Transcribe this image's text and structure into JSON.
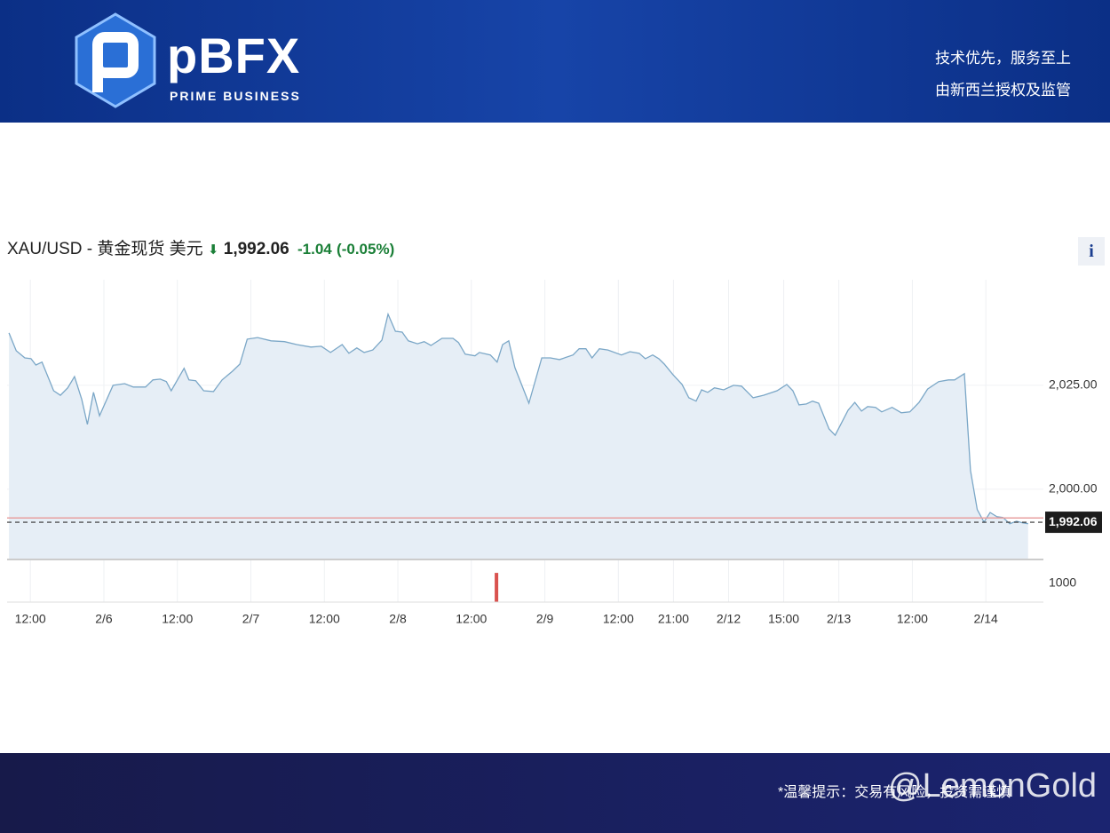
{
  "header": {
    "brand": "pBFX",
    "brand_sub": "PRIME BUSINESS",
    "tagline_1": "技术优先，服务至上",
    "tagline_2": "由新西兰授权及监管"
  },
  "info_button": "i",
  "footer": {
    "note": "*温馨提示：交易有风险，投资需谨慎",
    "watermark": "@LemonGold"
  },
  "chart_data": [
    {
      "type": "line",
      "title": "XAU/USD - 黄金现货 美元",
      "price": "1,992.06",
      "change": "-1.04",
      "change_pct": "(-0.05%)",
      "color": "#7ba7c7",
      "fill": "#e6eef6",
      "x": [
        -3.5,
        -2.3,
        -0.9,
        0.1,
        0.9,
        1.9,
        3.8,
        4.9,
        6.1,
        7.2,
        8.4,
        9.3,
        10.3,
        11.3,
        13.5,
        15.4,
        16.8,
        18.8,
        20.0,
        21.2,
        22.2,
        23.0,
        25.1,
        25.9,
        27.0,
        28.3,
        29.9,
        31.3,
        33.0,
        34.2,
        35.4,
        37.1,
        39.3,
        41.5,
        43.5,
        45.8,
        47.5,
        49.0,
        50.9,
        52.0,
        53.3,
        54.5,
        55.9,
        57.4,
        58.4,
        59.6,
        60.7,
        61.7,
        63.2,
        64.3,
        65.4,
        67.2,
        69.0,
        69.9,
        71.0,
        72.6,
        73.3,
        75.1,
        76.2,
        77.1,
        78.1,
        79.1,
        81.4,
        83.5,
        84.9,
        86.4,
        88.6,
        89.6,
        90.7,
        91.7,
        92.9,
        94.3,
        96.5,
        97.9,
        99.4,
        100.4,
        101.6,
        102.6,
        103.5,
        104.9,
        106.4,
        107.5,
        108.7,
        109.6,
        110.6,
        111.7,
        113.2,
        114.8,
        116.1,
        118.0,
        119.7,
        121.9,
        123.5,
        124.5,
        125.5,
        126.7,
        127.7,
        128.7,
        130.4,
        131.4,
        133.5,
        134.6,
        135.7,
        136.7,
        138.0,
        139.0,
        140.7,
        142.2,
        143.6,
        145.1,
        146.5,
        148.3,
        149.9,
        150.9,
        152.5,
        153.5,
        154.6,
        155.7,
        156.7,
        157.8,
        158.8,
        159.9,
        161.0,
        162.0,
        162.9
      ],
      "values": [
        2037.6,
        2033.3,
        2031.6,
        2031.4,
        2029.9,
        2030.6,
        2023.7,
        2022.6,
        2024.4,
        2027.1,
        2021.6,
        2015.6,
        2023.3,
        2017.7,
        2025.0,
        2025.4,
        2024.6,
        2024.6,
        2026.3,
        2026.5,
        2025.9,
        2023.7,
        2029.1,
        2026.3,
        2026.1,
        2023.7,
        2023.5,
        2026.3,
        2028.4,
        2030.1,
        2036.1,
        2036.5,
        2035.7,
        2035.5,
        2034.8,
        2034.2,
        2034.4,
        2032.9,
        2034.8,
        2032.7,
        2034.0,
        2032.9,
        2033.5,
        2035.9,
        2042.1,
        2038.0,
        2037.8,
        2035.7,
        2035.0,
        2035.5,
        2034.6,
        2036.3,
        2036.3,
        2035.3,
        2032.5,
        2032.1,
        2032.9,
        2032.3,
        2030.6,
        2034.8,
        2035.7,
        2029.3,
        2020.7,
        2031.6,
        2031.6,
        2031.2,
        2032.3,
        2033.8,
        2033.8,
        2031.6,
        2033.8,
        2033.5,
        2032.3,
        2033.1,
        2032.7,
        2031.4,
        2032.3,
        2031.4,
        2030.1,
        2027.6,
        2025.2,
        2022.0,
        2021.2,
        2023.9,
        2023.3,
        2024.4,
        2023.9,
        2025.0,
        2024.8,
        2022.0,
        2022.6,
        2023.7,
        2025.2,
        2023.7,
        2020.3,
        2020.5,
        2021.2,
        2020.7,
        2014.5,
        2013.0,
        2019.0,
        2020.9,
        2018.8,
        2019.9,
        2019.7,
        2018.6,
        2019.7,
        2018.4,
        2018.6,
        2020.9,
        2024.1,
        2025.9,
        2026.3,
        2026.3,
        2027.8,
        2004.5,
        1995.1,
        1992.1,
        1994.4,
        1993.4,
        1993.2,
        1991.7,
        1992.3,
        1991.9,
        1991.7
      ],
      "previous_close": 1993.1,
      "previous_close_color": "#e8a0a0",
      "last_price": {
        "value": 1992.06,
        "label": "1,992.06"
      },
      "xlim": [
        -3.8,
        165.4
      ],
      "ylim": [
        1983.1,
        2050.4
      ],
      "yticks": [
        {
          "value": 2025,
          "label": "2,025.00"
        },
        {
          "value": 2000,
          "label": "2,000.00"
        }
      ],
      "grid": true
    },
    {
      "type": "bar",
      "x": [
        76.1
      ],
      "values": [
        1570
      ],
      "color": "#d9534f",
      "xlim": [
        -3.8,
        165.4
      ],
      "ylim": [
        0,
        2290
      ],
      "yticks": [
        1000
      ],
      "xticks": [
        {
          "value": 0,
          "label": "12:00"
        },
        {
          "value": 12,
          "label": "2/6"
        },
        {
          "value": 24,
          "label": "12:00"
        },
        {
          "value": 36,
          "label": "2/7"
        },
        {
          "value": 48,
          "label": "12:00"
        },
        {
          "value": 60,
          "label": "2/8"
        },
        {
          "value": 72,
          "label": "12:00"
        },
        {
          "value": 84,
          "label": "2/9"
        },
        {
          "value": 96,
          "label": "12:00"
        },
        {
          "value": 105,
          "label": "21:00"
        },
        {
          "value": 114,
          "label": "2/12"
        },
        {
          "value": 123,
          "label": "15:00"
        },
        {
          "value": 132,
          "label": "2/13"
        },
        {
          "value": 144,
          "label": "12:00"
        },
        {
          "value": 156,
          "label": "2/14"
        }
      ]
    }
  ]
}
